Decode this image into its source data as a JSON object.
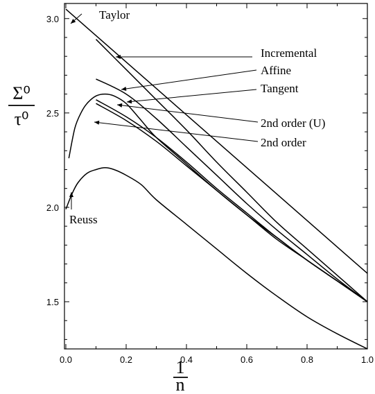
{
  "chart_data": {
    "type": "line",
    "title": "",
    "xlabel": "1/n",
    "xlabel_num": "1",
    "xlabel_den": "n",
    "ylabel_num": "Σ⁰",
    "ylabel_den": "τ⁰",
    "xlim": [
      0.0,
      1.0
    ],
    "ylim": [
      1.25,
      3.08
    ],
    "grid": false,
    "x_ticks": [
      {
        "value": 0.0,
        "label": "0.0"
      },
      {
        "value": 0.2,
        "label": "0.2"
      },
      {
        "value": 0.4,
        "label": "0.4"
      },
      {
        "value": 0.6,
        "label": "0.6"
      },
      {
        "value": 0.8,
        "label": "0.8"
      },
      {
        "value": 1.0,
        "label": "1.0"
      }
    ],
    "y_ticks": [
      {
        "value": 1.5,
        "label": "1.5"
      },
      {
        "value": 2.0,
        "label": "2.0"
      },
      {
        "value": 2.5,
        "label": "2.5"
      },
      {
        "value": 3.0,
        "label": "3.0"
      }
    ],
    "series": [
      {
        "name": "Taylor",
        "x": [
          0.0,
          1.0
        ],
        "y": [
          3.05,
          1.65
        ]
      },
      {
        "name": "Incremental",
        "x": [
          0.1,
          0.2,
          0.3,
          0.4,
          0.5,
          0.6,
          0.7,
          0.8,
          0.9,
          1.0
        ],
        "y": [
          2.89,
          2.73,
          2.57,
          2.41,
          2.24,
          2.08,
          1.92,
          1.78,
          1.64,
          1.5
        ]
      },
      {
        "name": "Affine",
        "x": [
          0.1,
          0.2,
          0.3,
          0.4,
          0.5,
          0.6,
          0.7,
          0.8,
          0.9,
          1.0
        ],
        "y": [
          2.68,
          2.6,
          2.47,
          2.32,
          2.17,
          2.02,
          1.88,
          1.75,
          1.62,
          1.5
        ]
      },
      {
        "name": "Tangent",
        "x": [
          0.1,
          0.2,
          0.3,
          0.4,
          0.5,
          0.6,
          0.7,
          0.8,
          0.9,
          1.0
        ],
        "y": [
          2.57,
          2.48,
          2.37,
          2.24,
          2.1,
          1.97,
          1.84,
          1.72,
          1.61,
          1.5
        ]
      },
      {
        "name": "2nd order (U)",
        "x": [
          0.1,
          0.2,
          0.3,
          0.4,
          0.5,
          0.6,
          0.7,
          0.8,
          0.9,
          1.0
        ],
        "y": [
          2.55,
          2.46,
          2.35,
          2.22,
          2.09,
          1.96,
          1.83,
          1.72,
          1.61,
          1.5
        ]
      },
      {
        "name": "2nd order",
        "x": [
          0.01,
          0.03,
          0.05,
          0.07,
          0.1,
          0.13,
          0.16,
          0.2,
          0.25,
          0.3,
          0.4,
          0.5,
          0.6,
          0.7,
          0.8,
          0.9,
          1.0
        ],
        "y": [
          2.26,
          2.42,
          2.5,
          2.55,
          2.59,
          2.6,
          2.59,
          2.55,
          2.46,
          2.37,
          2.23,
          2.09,
          1.96,
          1.84,
          1.72,
          1.61,
          1.5
        ]
      },
      {
        "name": "Reuss",
        "x": [
          0.0,
          0.02,
          0.04,
          0.07,
          0.1,
          0.13,
          0.16,
          0.2,
          0.25,
          0.3,
          0.4,
          0.5,
          0.6,
          0.7,
          0.8,
          0.9,
          1.0
        ],
        "y": [
          1.99,
          2.07,
          2.13,
          2.18,
          2.2,
          2.21,
          2.2,
          2.17,
          2.12,
          2.04,
          1.91,
          1.78,
          1.65,
          1.53,
          1.42,
          1.33,
          1.25
        ]
      }
    ],
    "annotations": [
      {
        "text": "Taylor",
        "series": "Taylor"
      },
      {
        "text": "Incremental",
        "series": "Incremental"
      },
      {
        "text": "Affine",
        "series": "Affine"
      },
      {
        "text": "Tangent",
        "series": "Tangent"
      },
      {
        "text": "2nd order (U)",
        "series": "2nd order (U)"
      },
      {
        "text": "2nd order",
        "series": "2nd order"
      },
      {
        "text": "Reuss",
        "series": "Reuss"
      }
    ]
  }
}
